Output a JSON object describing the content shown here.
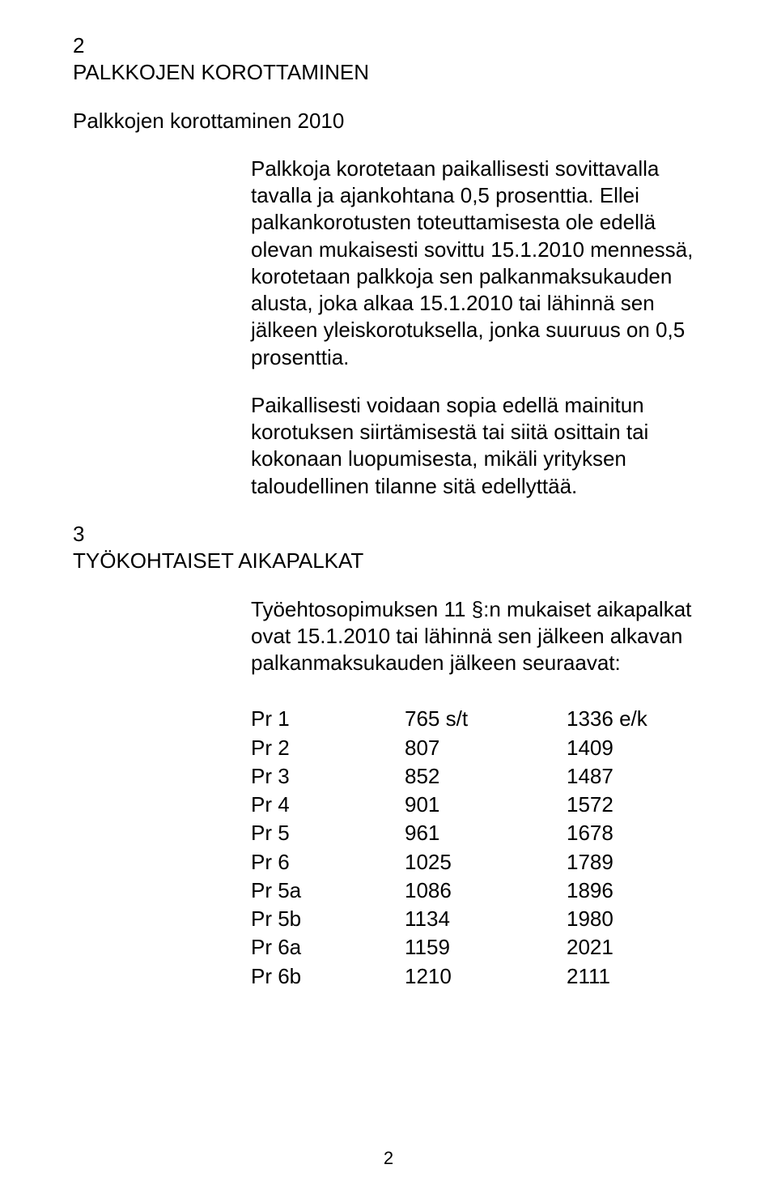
{
  "section2": {
    "num": "2",
    "heading": "PALKKOJEN KOROTTAMINEN",
    "subheading": "Palkkojen korottaminen 2010",
    "para1": "Palkkoja korotetaan paikallisesti sovittavalla tavalla ja ajankohtana 0,5 prosenttia. Ellei palkankorotusten toteuttamisesta ole edellä olevan mukaisesti sovittu 15.1.2010 mennessä, korotetaan palkkoja sen palkanmaksukauden alusta, joka alkaa 15.1.2010 tai lähinnä sen jälkeen yleiskorotuksella, jonka suuruus on 0,5 prosenttia.",
    "para2": "Paikallisesti voidaan sopia edellä mainitun korotuksen siirtämisestä tai siitä osittain tai kokonaan luopumisesta, mikäli yrityksen taloudellinen tilanne sitä edellyttää."
  },
  "section3": {
    "num": "3",
    "heading": "TYÖKOHTAISET AIKAPALKAT",
    "para1": "Työehtosopimuksen 11 §:n mukaiset aikapalkat ovat 15.1.2010 tai lähinnä sen jälkeen alkavan palkanmaksukauden jälkeen seuraavat:",
    "rows": [
      {
        "label": "Pr 1",
        "v1": "765 s/t",
        "v2": "1336 e/k"
      },
      {
        "label": "Pr 2",
        "v1": "807",
        "v2": "1409"
      },
      {
        "label": "Pr 3",
        "v1": "852",
        "v2": "1487"
      },
      {
        "label": "Pr 4",
        "v1": "901",
        "v2": "1572"
      },
      {
        "label": "Pr 5",
        "v1": "961",
        "v2": "1678"
      },
      {
        "label": "Pr 6",
        "v1": "1025",
        "v2": "1789"
      },
      {
        "label": "Pr 5a",
        "v1": "1086",
        "v2": "1896"
      },
      {
        "label": "Pr 5b",
        "v1": "1134",
        "v2": "1980"
      },
      {
        "label": "Pr 6a",
        "v1": "1159",
        "v2": "2021"
      },
      {
        "label": "Pr 6b",
        "v1": "1210",
        "v2": "2111"
      }
    ]
  },
  "pageNumber": "2"
}
